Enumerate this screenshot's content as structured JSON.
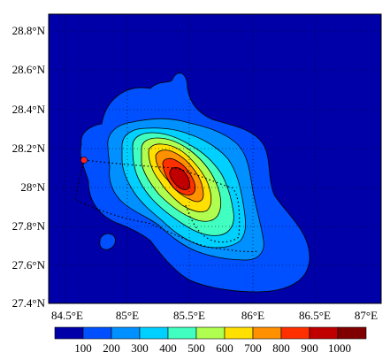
{
  "map": {
    "lat_labels": [
      "28.8°N",
      "28.6°N",
      "28.4°N",
      "28.2°N",
      "28°N",
      "27.8°N",
      "27.6°N",
      "27.4°N"
    ],
    "lon_labels": [
      "84.5°E",
      "85°E",
      "85.5°E",
      "86°E",
      "86.5°E",
      "87°E"
    ],
    "colorbar_labels": [
      "100",
      "200",
      "300",
      "400",
      "500",
      "600",
      "700",
      "800",
      "900",
      "1000"
    ],
    "colors": {
      "ocean": "#0000a8",
      "levels": [
        "#0050ff",
        "#0090ff",
        "#00d0ff",
        "#40ffc0",
        "#b0ff50",
        "#ffe000",
        "#ff9000",
        "#ff3000",
        "#c00000",
        "#800000"
      ],
      "marker": "#ff2020"
    },
    "marker_icon": "star-icon"
  }
}
